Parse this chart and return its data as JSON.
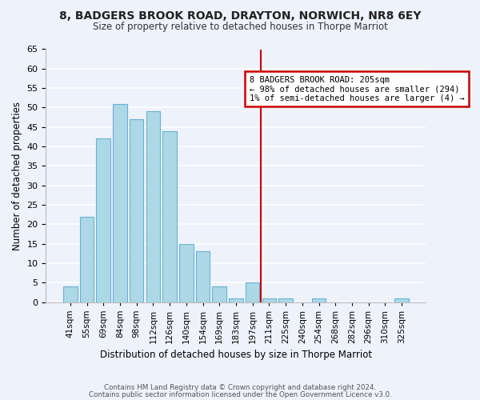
{
  "title": "8, BADGERS BROOK ROAD, DRAYTON, NORWICH, NR8 6EY",
  "subtitle": "Size of property relative to detached houses in Thorpe Marriot",
  "xlabel": "Distribution of detached houses by size in Thorpe Marriot",
  "ylabel": "Number of detached properties",
  "bar_labels": [
    "41sqm",
    "55sqm",
    "69sqm",
    "84sqm",
    "98sqm",
    "112sqm",
    "126sqm",
    "140sqm",
    "154sqm",
    "169sqm",
    "183sqm",
    "197sqm",
    "211sqm",
    "225sqm",
    "240sqm",
    "254sqm",
    "268sqm",
    "282sqm",
    "296sqm",
    "310sqm",
    "325sqm"
  ],
  "bar_heights": [
    4,
    22,
    42,
    51,
    47,
    49,
    44,
    15,
    13,
    4,
    1,
    5,
    1,
    1,
    0,
    1,
    0,
    0,
    0,
    0,
    1
  ],
  "bar_color": "#add8e6",
  "bar_edge_color": "#6ab0d4",
  "background_color": "#eef2fb",
  "grid_color": "#ffffff",
  "ylim": [
    0,
    65
  ],
  "yticks": [
    0,
    5,
    10,
    15,
    20,
    25,
    30,
    35,
    40,
    45,
    50,
    55,
    60,
    65
  ],
  "vline_pos": 11.5,
  "vline_color": "#cc0000",
  "annotation_title": "8 BADGERS BROOK ROAD: 205sqm",
  "annotation_line1": "← 98% of detached houses are smaller (294)",
  "annotation_line2": "1% of semi-detached houses are larger (4) →",
  "annotation_box_color": "#ffffff",
  "annotation_box_edge": "#cc0000",
  "footer_line1": "Contains HM Land Registry data © Crown copyright and database right 2024.",
  "footer_line2": "Contains public sector information licensed under the Open Government Licence v3.0."
}
